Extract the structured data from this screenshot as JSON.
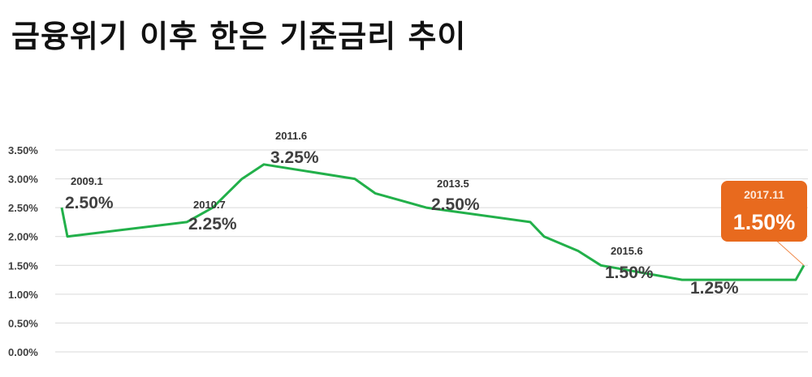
{
  "title": "금융위기 이후 한은 기준금리 추이",
  "colors": {
    "line": "#22b04a",
    "grid": "#d9d9d9",
    "callout": "#e86a1e",
    "text": "#404040"
  },
  "chart_data": {
    "type": "line",
    "title": "금융위기 이후 한은 기준금리 추이",
    "ylim": [
      0,
      3.5
    ],
    "y_ticks": [
      "0.00%",
      "0.50%",
      "1.00%",
      "1.50%",
      "2.00%",
      "2.50%",
      "3.00%",
      "3.50%"
    ],
    "grid": true,
    "series": [
      {
        "values": [
          2.5,
          2.0,
          2.25,
          2.5,
          3.0,
          3.25,
          3.0,
          2.75,
          2.5,
          2.25,
          2.0,
          1.75,
          1.5,
          1.25,
          1.25,
          1.5
        ]
      }
    ],
    "annotations": [
      {
        "date": "2009.1",
        "value": "2.50%",
        "point": 0
      },
      {
        "date": "2010.7",
        "value": "2.25%",
        "point": 2
      },
      {
        "date": "2011.6",
        "value": "3.25%",
        "point": 5
      },
      {
        "date": "2013.5",
        "value": "2.50%",
        "point": 8
      },
      {
        "date": "2015.6",
        "value": "1.50%",
        "point": 12
      },
      {
        "date": "",
        "value": "1.25%",
        "point": 13
      },
      {
        "date": "2017.11",
        "value": "1.50%",
        "point": 15,
        "highlight": true
      }
    ]
  }
}
